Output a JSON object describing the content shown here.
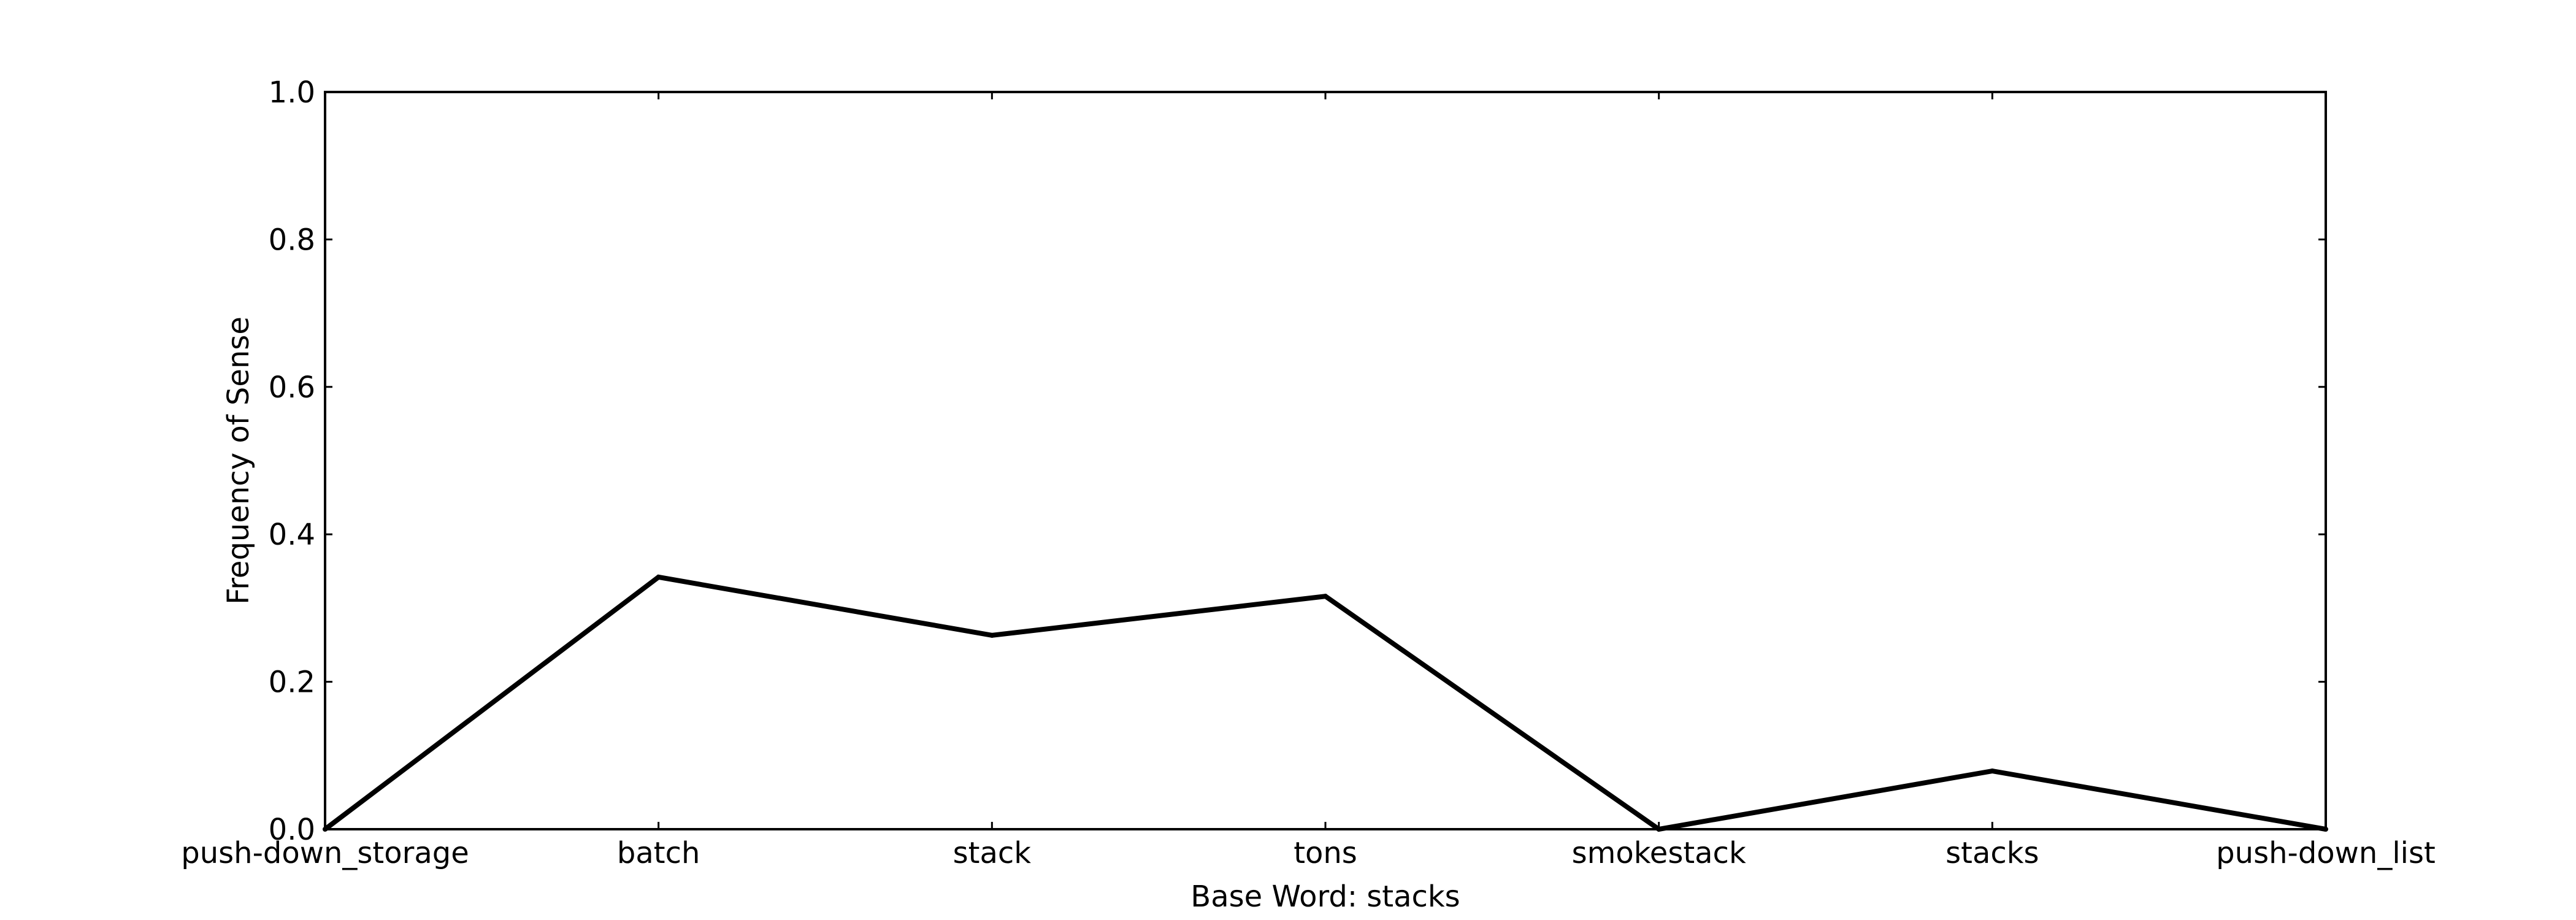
{
  "chart_data": {
    "type": "line",
    "title": "",
    "xlabel": "Base Word: stacks",
    "ylabel": "Frequency of Sense",
    "categories": [
      "push-down_storage",
      "batch",
      "stack",
      "tons",
      "smokestack",
      "stacks",
      "push-down_list"
    ],
    "series": [
      {
        "values": [
          0.0,
          0.342,
          0.263,
          0.316,
          0.0,
          0.079,
          0.0
        ]
      }
    ],
    "ylim": [
      0.0,
      1.0
    ],
    "yticks": [
      "0.0",
      "0.2",
      "0.4",
      "0.6",
      "0.8",
      "1.0"
    ],
    "grid": false,
    "line_color": "#000000"
  }
}
